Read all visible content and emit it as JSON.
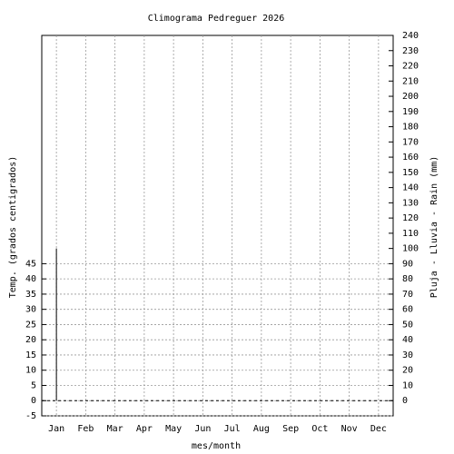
{
  "chart_data": {
    "type": "impulse",
    "title": "Climograma Pedreguer 2026",
    "x_label": "mes/month",
    "y_label": "Temp. (grados centigrados)",
    "y2_label": "Pluja - Lluvia - Rain (mm)",
    "categories": [
      "Jan",
      "Feb",
      "Mar",
      "Apr",
      "May",
      "Jun",
      "Jul",
      "Aug",
      "Sep",
      "Oct",
      "Nov",
      "Dec"
    ],
    "series": [
      {
        "name": "Rain",
        "color": "#000000",
        "axis": "y2",
        "values": [
          100,
          0,
          0,
          0,
          0,
          0,
          0,
          0,
          0,
          0,
          0,
          0
        ]
      }
    ],
    "ylim": [
      -5,
      120
    ],
    "yticks": [
      -5,
      0,
      5,
      10,
      15,
      20,
      25,
      30,
      35,
      40,
      45
    ],
    "y2lim": [
      -10,
      240
    ],
    "y2ticks": [
      0,
      10,
      20,
      30,
      40,
      50,
      60,
      70,
      80,
      90,
      100,
      110,
      120,
      130,
      140,
      150,
      160,
      170,
      180,
      190,
      200,
      210,
      220,
      230,
      240
    ],
    "grid": true,
    "zero_axis": true
  }
}
